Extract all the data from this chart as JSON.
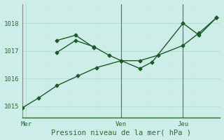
{
  "xlabel": "Pression niveau de la mer( hPa )",
  "background_color": "#cdeee8",
  "grid_color_major": "#b8ddd8",
  "grid_color_minor": "#cce8e3",
  "line_color": "#1a5c28",
  "tick_label_color": "#2d6b35",
  "axis_label_color": "#2d6b35",
  "ylim": [
    1014.6,
    1018.7
  ],
  "xlim": [
    0,
    16
  ],
  "yticks": [
    1015,
    1016,
    1017,
    1018
  ],
  "day_labels": [
    "Mer",
    "Ven",
    "Jeu"
  ],
  "day_positions": [
    0.3,
    8.0,
    13.0
  ],
  "vline_positions": [
    8.0,
    13.0
  ],
  "series1_x": [
    0.0,
    1.3,
    2.8,
    4.5,
    6.0,
    8.0,
    9.5,
    11.0,
    13.0,
    14.3,
    15.7
  ],
  "series1_y": [
    1014.95,
    1015.3,
    1015.75,
    1016.1,
    1016.4,
    1016.65,
    1016.65,
    1016.85,
    1017.2,
    1017.65,
    1018.2
  ],
  "series2_x": [
    2.8,
    4.3,
    5.8,
    7.0,
    8.0,
    9.5,
    10.5,
    13.0,
    14.3,
    15.7
  ],
  "series2_y": [
    1016.95,
    1017.38,
    1017.15,
    1016.85,
    1016.65,
    1016.37,
    1016.6,
    1018.0,
    1017.57,
    1018.2
  ],
  "series3_x": [
    2.8,
    4.3,
    5.8
  ],
  "series3_y": [
    1017.38,
    1017.57,
    1017.12
  ]
}
